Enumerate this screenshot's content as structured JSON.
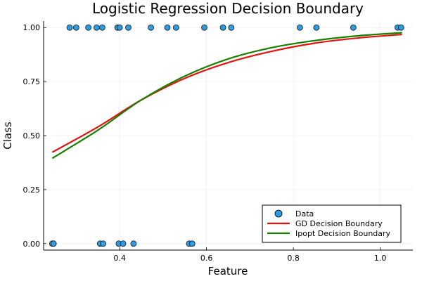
{
  "chart_data": {
    "type": "scatter",
    "title": "Logistic Regression Decision Boundary",
    "xlabel": "Feature",
    "ylabel": "Class",
    "xlim": [
      0.225,
      1.075
    ],
    "ylim": [
      -0.03,
      1.03
    ],
    "x_ticks": [
      0.4,
      0.6,
      0.8,
      1.0
    ],
    "x_tick_labels": [
      "0.4",
      "0.6",
      "0.8",
      "1.0"
    ],
    "y_ticks": [
      0.0,
      0.25,
      0.5,
      0.75,
      1.0
    ],
    "y_tick_labels": [
      "0.00",
      "0.25",
      "0.50",
      "0.75",
      "1.00"
    ],
    "grid": true,
    "legend_position": "bottom-right",
    "scatter": {
      "name": "Data",
      "color": "#2d9be0",
      "points": [
        {
          "x": 0.245,
          "y": 0
        },
        {
          "x": 0.248,
          "y": 0
        },
        {
          "x": 0.355,
          "y": 0
        },
        {
          "x": 0.362,
          "y": 0
        },
        {
          "x": 0.398,
          "y": 0
        },
        {
          "x": 0.408,
          "y": 0
        },
        {
          "x": 0.432,
          "y": 0
        },
        {
          "x": 0.56,
          "y": 0
        },
        {
          "x": 0.567,
          "y": 0
        },
        {
          "x": 0.285,
          "y": 1
        },
        {
          "x": 0.3,
          "y": 1
        },
        {
          "x": 0.328,
          "y": 1
        },
        {
          "x": 0.347,
          "y": 1
        },
        {
          "x": 0.36,
          "y": 1
        },
        {
          "x": 0.395,
          "y": 1
        },
        {
          "x": 0.4,
          "y": 1
        },
        {
          "x": 0.42,
          "y": 1
        },
        {
          "x": 0.472,
          "y": 1
        },
        {
          "x": 0.51,
          "y": 1
        },
        {
          "x": 0.53,
          "y": 1
        },
        {
          "x": 0.595,
          "y": 1
        },
        {
          "x": 0.638,
          "y": 1
        },
        {
          "x": 0.657,
          "y": 1
        },
        {
          "x": 0.815,
          "y": 1
        },
        {
          "x": 0.853,
          "y": 1
        },
        {
          "x": 0.938,
          "y": 1
        },
        {
          "x": 1.04,
          "y": 1
        },
        {
          "x": 1.048,
          "y": 1
        }
      ]
    },
    "series": [
      {
        "name": "GD Decision Boundary",
        "color": "#e3140f",
        "x": [
          0.245,
          0.35,
          0.45,
          0.55,
          0.65,
          0.75,
          0.85,
          0.95,
          1.05
        ],
        "y": [
          0.423,
          0.54,
          0.665,
          0.765,
          0.838,
          0.89,
          0.928,
          0.952,
          0.968
        ]
      },
      {
        "name": "Ipopt Decision Boundary",
        "color": "#178000",
        "x": [
          0.245,
          0.35,
          0.45,
          0.55,
          0.65,
          0.75,
          0.85,
          0.95,
          1.05
        ],
        "y": [
          0.395,
          0.525,
          0.665,
          0.775,
          0.855,
          0.907,
          0.94,
          0.962,
          0.976
        ]
      }
    ]
  }
}
